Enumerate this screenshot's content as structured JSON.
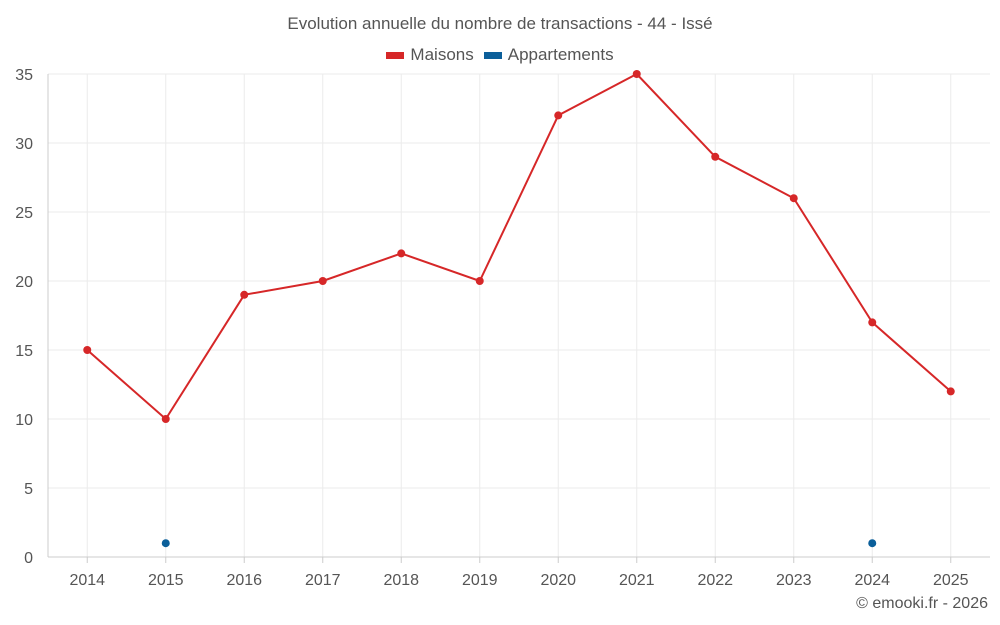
{
  "title": "Evolution annuelle du nombre de transactions - 44 - Issé",
  "credit": "© emooki.fr - 2026",
  "colors": {
    "maisons": "#d62728",
    "appartements": "#0b5f9a",
    "grid": "#ebebeb",
    "axis": "#cccccc"
  },
  "legend": [
    {
      "label": "Maisons",
      "color": "#d62728"
    },
    {
      "label": "Appartements",
      "color": "#0b5f9a"
    }
  ],
  "chart_data": {
    "type": "line",
    "title": "Evolution annuelle du nombre de transactions - 44 - Issé",
    "categories": [
      "2014",
      "2015",
      "2016",
      "2017",
      "2018",
      "2019",
      "2020",
      "2021",
      "2022",
      "2023",
      "2024",
      "2025"
    ],
    "yticks": [
      0,
      5,
      10,
      15,
      20,
      25,
      30,
      35
    ],
    "ylim": [
      0,
      35
    ],
    "grid": true,
    "legend_position": "top",
    "series": [
      {
        "name": "Maisons",
        "values": [
          15,
          10,
          19,
          20,
          22,
          20,
          32,
          35,
          29,
          26,
          17,
          12
        ]
      },
      {
        "name": "Appartements",
        "values": [
          null,
          1,
          null,
          null,
          null,
          null,
          null,
          null,
          null,
          null,
          1,
          null
        ]
      }
    ]
  }
}
